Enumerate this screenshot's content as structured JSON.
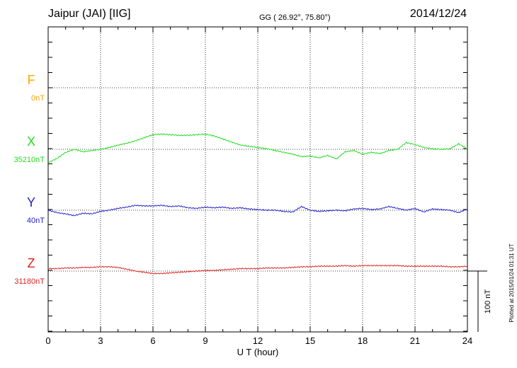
{
  "header": {
    "station": "Jaipur (JAI)  [IIG]",
    "coords": "GG ( 26.92°,  75.80°)",
    "date": "2014/12/24"
  },
  "footer": {
    "plotted": "Plotted at 2015/01/24 01:31  UT"
  },
  "chart_data": {
    "type": "line",
    "title": "Jaipur (JAI)  [IIG]",
    "xlabel": "U T (hour)",
    "xlim": [
      0,
      24
    ],
    "xticks": [
      0,
      3,
      6,
      9,
      12,
      15,
      18,
      21,
      24
    ],
    "scale_label": "100 nT",
    "scale_nT": 100,
    "grid": true,
    "series": [
      {
        "name": "F",
        "baseline_label": "0nT",
        "color": "#ffa500",
        "x": [],
        "values": []
      },
      {
        "name": "X",
        "baseline_label": "35210nT",
        "color": "#22dd22",
        "x": [
          0,
          0.5,
          1,
          1.5,
          2,
          2.5,
          3,
          3.5,
          4,
          4.5,
          5,
          5.5,
          6,
          6.5,
          7,
          7.5,
          8,
          8.5,
          9,
          9.5,
          10,
          10.5,
          11,
          11.5,
          12,
          12.5,
          13,
          13.5,
          14,
          14.5,
          15,
          15.5,
          16,
          16.5,
          17,
          17.5,
          18,
          18.5,
          19,
          19.5,
          20,
          20.5,
          21,
          21.5,
          22,
          22.5,
          23,
          23.5,
          24
        ],
        "values": [
          -22,
          -15,
          -5,
          0,
          -4,
          -2,
          0,
          3,
          7,
          10,
          14,
          19,
          24,
          25,
          24,
          23,
          23,
          24,
          25,
          22,
          17,
          12,
          7,
          5,
          3,
          1,
          -2,
          -5,
          -8,
          -12,
          -11,
          -14,
          -10,
          -16,
          -4,
          -2,
          -8,
          -5,
          -7,
          -2,
          0,
          11,
          8,
          3,
          1,
          0,
          1,
          9,
          1
        ]
      },
      {
        "name": "Y",
        "baseline_label": "40nT",
        "color": "#2222cc",
        "x": [
          0,
          0.5,
          1,
          1.5,
          2,
          2.5,
          3,
          3.5,
          4,
          4.5,
          5,
          5.5,
          6,
          6.5,
          7,
          7.5,
          8,
          8.5,
          9,
          9.5,
          10,
          10.5,
          11,
          11.5,
          12,
          12.5,
          13,
          13.5,
          14,
          14.5,
          15,
          15.5,
          16,
          16.5,
          17,
          17.5,
          18,
          18.5,
          19,
          19.5,
          20,
          20.5,
          21,
          21.5,
          22,
          22.5,
          23,
          23.5,
          24
        ],
        "values": [
          0,
          -4,
          -6,
          -9,
          -5,
          -6,
          -2,
          0,
          3,
          5,
          8,
          7,
          7,
          8,
          6,
          7,
          4,
          3,
          5,
          4,
          5,
          3,
          4,
          2,
          1,
          0,
          0,
          -2,
          -3,
          6,
          0,
          -2,
          -1,
          0,
          -1,
          2,
          3,
          1,
          2,
          6,
          3,
          0,
          3,
          -3,
          2,
          1,
          0,
          -4,
          2
        ]
      },
      {
        "name": "Z",
        "baseline_label": "31180nT",
        "color": "#dd2222",
        "x": [
          0,
          0.5,
          1,
          1.5,
          2,
          2.5,
          3,
          3.5,
          4,
          4.5,
          5,
          5.5,
          6,
          6.5,
          7,
          7.5,
          8,
          8.5,
          9,
          9.5,
          10,
          10.5,
          11,
          11.5,
          12,
          12.5,
          13,
          13.5,
          14,
          14.5,
          15,
          15.5,
          16,
          16.5,
          17,
          17.5,
          18,
          18.5,
          19,
          19.5,
          20,
          20.5,
          21,
          21.5,
          22,
          22.5,
          23,
          23.5,
          24
        ],
        "values": [
          4,
          4,
          5,
          5,
          6,
          6,
          7,
          7,
          6,
          3,
          0,
          -2,
          -4,
          -4,
          -3,
          -2,
          -1,
          0,
          1,
          1,
          2,
          3,
          4,
          4,
          4,
          5,
          5,
          5,
          6,
          7,
          7,
          8,
          8,
          8,
          9,
          8,
          9,
          9,
          9,
          9,
          9,
          8,
          8,
          8,
          8,
          8,
          7,
          7,
          8
        ]
      }
    ]
  }
}
